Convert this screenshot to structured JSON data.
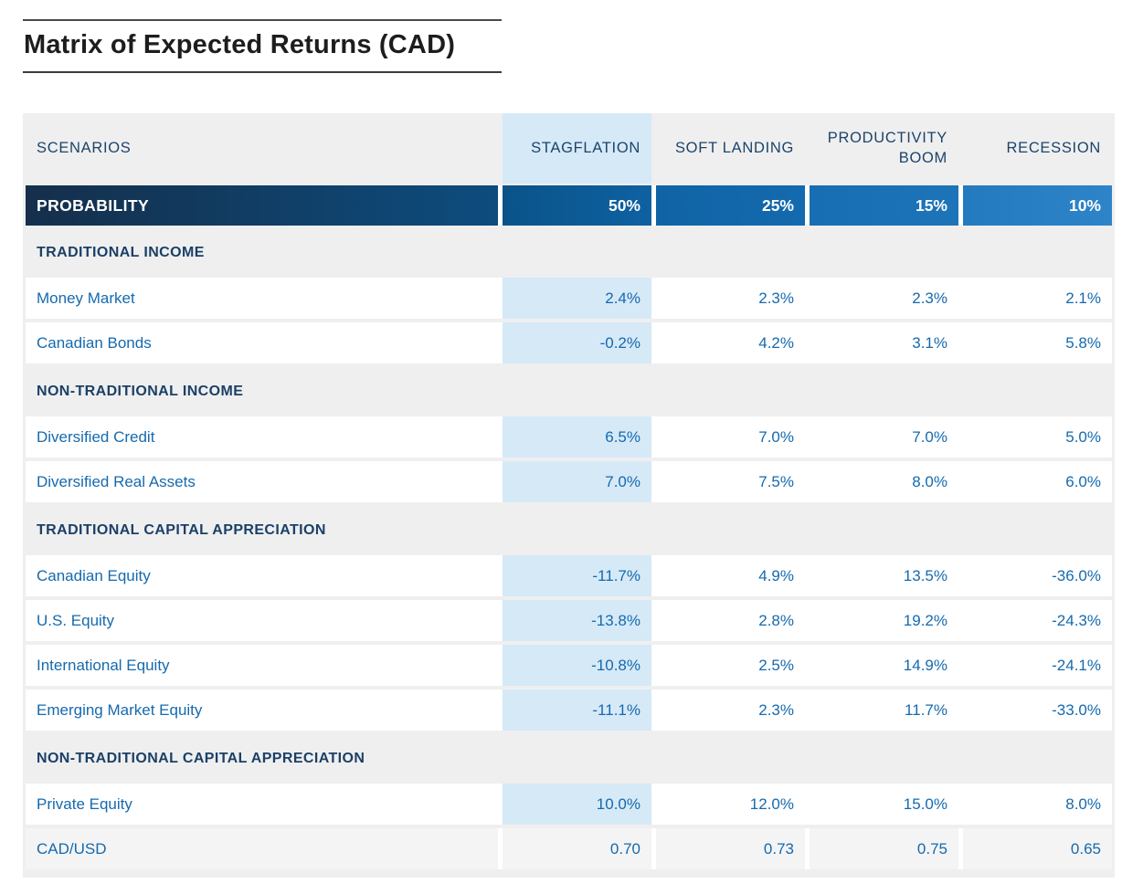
{
  "title": "Matrix of Expected Returns (CAD)",
  "table": {
    "header": {
      "scenarios_label": "SCENARIOS",
      "columns": [
        "STAGFLATION",
        "SOFT LANDING",
        "PRODUCTIVITY BOOM",
        "RECESSION"
      ]
    },
    "probability": {
      "label": "PROBABILITY",
      "values": [
        "50%",
        "25%",
        "15%",
        "10%"
      ]
    },
    "sections": [
      {
        "label": "TRADITIONAL INCOME",
        "rows": [
          {
            "label": "Money Market",
            "values": [
              "2.4%",
              "2.3%",
              "2.3%",
              "2.1%"
            ]
          },
          {
            "label": "Canadian Bonds",
            "values": [
              "-0.2%",
              "4.2%",
              "3.1%",
              "5.8%"
            ]
          }
        ]
      },
      {
        "label": "NON-TRADITIONAL INCOME",
        "rows": [
          {
            "label": "Diversified Credit",
            "values": [
              "6.5%",
              "7.0%",
              "7.0%",
              "5.0%"
            ]
          },
          {
            "label": "Diversified Real Assets",
            "values": [
              "7.0%",
              "7.5%",
              "8.0%",
              "6.0%"
            ]
          }
        ]
      },
      {
        "label": "TRADITIONAL CAPITAL APPRECIATION",
        "rows": [
          {
            "label": "Canadian Equity",
            "values": [
              "-11.7%",
              "4.9%",
              "13.5%",
              "-36.0%"
            ]
          },
          {
            "label": "U.S. Equity",
            "values": [
              "-13.8%",
              "2.8%",
              "19.2%",
              "-24.3%"
            ]
          },
          {
            "label": "International Equity",
            "values": [
              "-10.8%",
              "2.5%",
              "14.9%",
              "-24.1%"
            ]
          },
          {
            "label": "Emerging Market Equity",
            "values": [
              "-11.1%",
              "2.3%",
              "11.7%",
              "-33.0%"
            ]
          }
        ]
      },
      {
        "label": "NON-TRADITIONAL CAPITAL APPRECIATION",
        "rows": [
          {
            "label": "Private Equity",
            "values": [
              "10.0%",
              "12.0%",
              "15.0%",
              "8.0%"
            ]
          },
          {
            "label": "CAD/USD",
            "values": [
              "0.70",
              "0.73",
              "0.75",
              "0.65"
            ]
          }
        ]
      }
    ]
  },
  "colors": {
    "table_background": "#efeff0",
    "stagflation_highlight": "#d6e9f7",
    "muted_row_background": "#f4f4f5",
    "row_label_text": "#156aae",
    "value_text": "#156aae",
    "header_text_navy": "#1c4469",
    "section_text_navy": "#1b4066",
    "probability_gradient_start": "#152f4b",
    "probability_gradient_end": "#2e84c8",
    "probability_text": "#ffffff",
    "title_text": "#1d1d1f"
  }
}
